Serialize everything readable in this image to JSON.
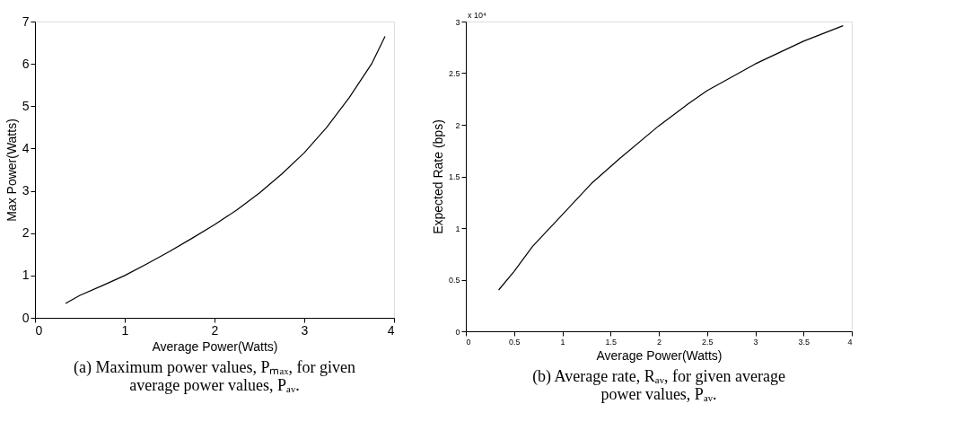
{
  "chart_data": [
    {
      "type": "line",
      "title": "(a) Maximum power values, Pₘₐₓ, for given average power values, Pₐᵥ.",
      "xlabel": "Average Power(Watts)",
      "ylabel": "Max Power(Watts)",
      "x": [
        0.34,
        0.5,
        0.75,
        1,
        1.25,
        1.5,
        1.75,
        2,
        2.25,
        2.5,
        2.75,
        3,
        3.25,
        3.5,
        3.75,
        3.9
      ],
      "series": [
        {
          "color": "#000000",
          "values": [
            0.34,
            0.53,
            0.76,
            1.0,
            1.28,
            1.57,
            1.88,
            2.2,
            2.55,
            2.95,
            3.4,
            3.9,
            4.5,
            5.2,
            6.0,
            6.65
          ]
        }
      ],
      "xlim": [
        0,
        4
      ],
      "xticks": [
        0,
        1,
        2,
        3,
        4
      ],
      "ylim": [
        0,
        7
      ],
      "yticks": [
        0,
        1,
        2,
        3,
        4,
        5,
        6,
        7
      ],
      "grid": false
    },
    {
      "type": "line",
      "title": "(b) Average rate, Rₐᵥ, for given average power values, Pₐᵥ.",
      "xlabel": "Average Power(Watts)",
      "ylabel": "Expected Rate (bps)",
      "annotations": [
        "x 10⁴"
      ],
      "x": [
        0.34,
        0.5,
        0.69,
        1,
        1.3,
        1.59,
        2,
        2.3,
        2.5,
        3,
        3.5,
        3.91
      ],
      "series": [
        {
          "color": "#000000",
          "values": [
            0.4,
            0.58,
            0.82,
            1.13,
            1.43,
            1.67,
            1.99,
            2.2,
            2.33,
            2.59,
            2.81,
            2.96
          ]
        }
      ],
      "xlim": [
        0,
        4
      ],
      "xticks": [
        0,
        0.5,
        1,
        1.5,
        2,
        2.5,
        3,
        3.5,
        4
      ],
      "ylim": [
        0,
        3
      ],
      "yticks": [
        0,
        0.5,
        1,
        1.5,
        2,
        2.5,
        3
      ],
      "grid": false
    }
  ]
}
